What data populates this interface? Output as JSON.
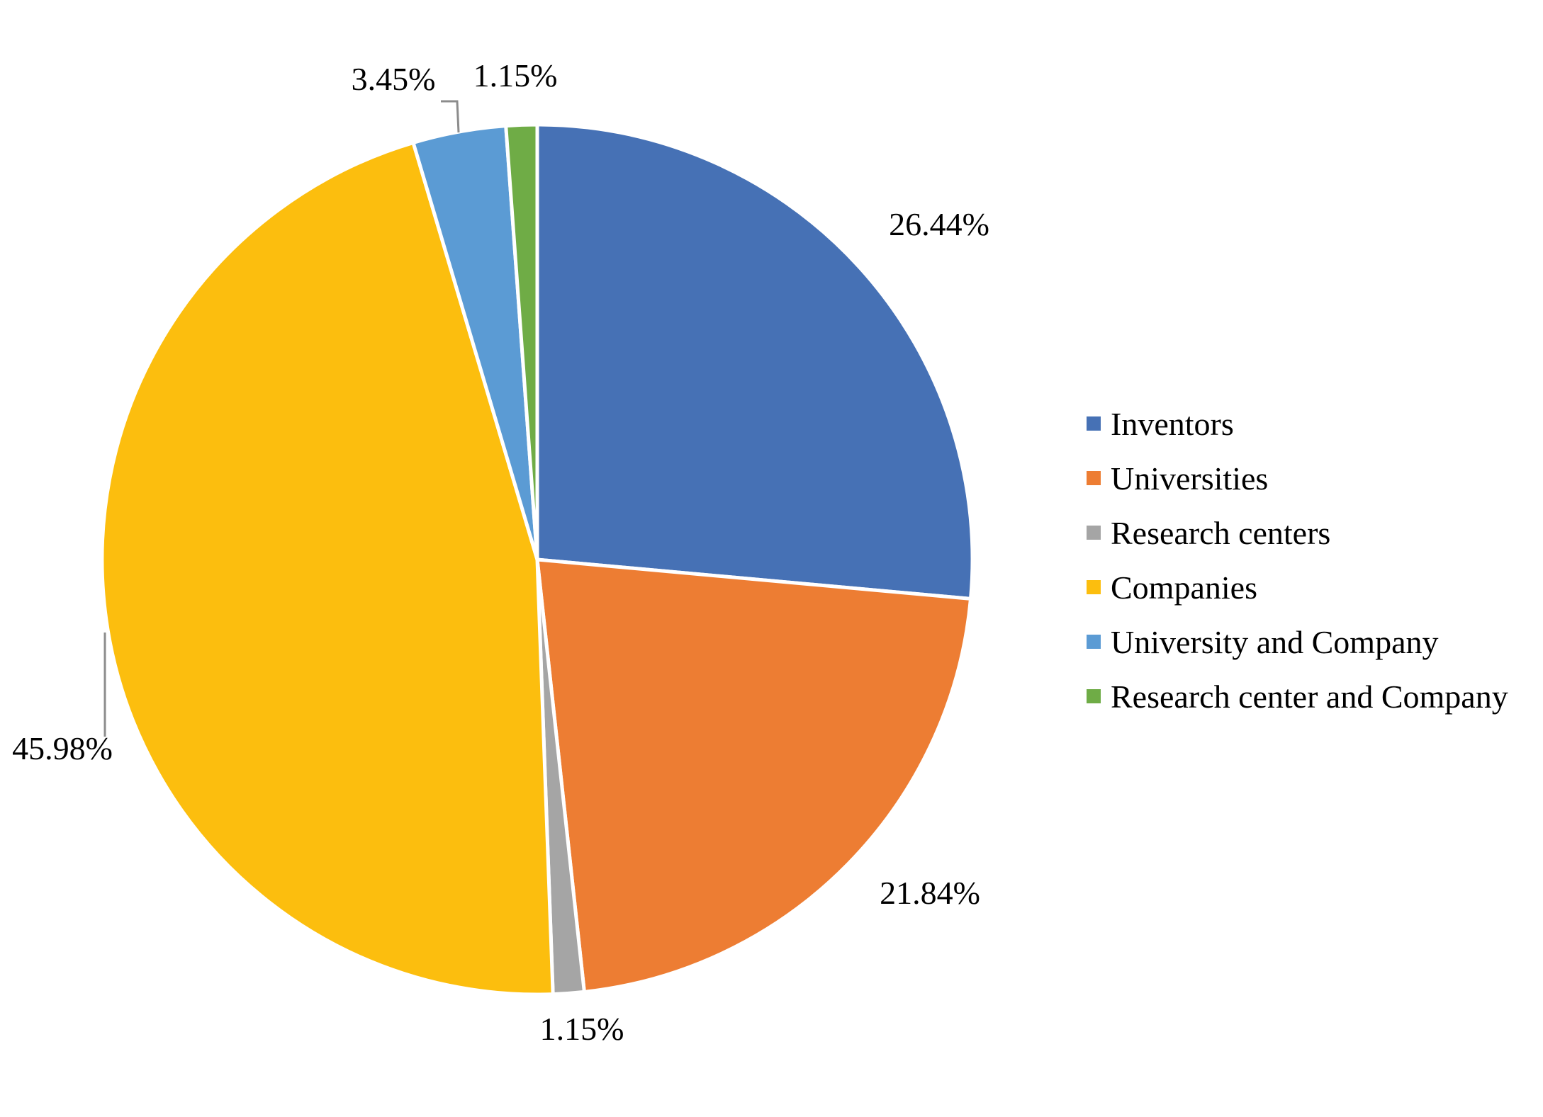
{
  "chart_data": {
    "type": "pie",
    "categories": [
      "Inventors",
      "Universities",
      "Research centers",
      "Companies",
      "University and Company",
      "Research center and Company"
    ],
    "values": [
      26.44,
      21.84,
      1.15,
      45.98,
      3.45,
      1.15
    ],
    "labels": [
      "26.44%",
      "21.84%",
      "1.15%",
      "45.98%",
      "3.45%",
      "1.15%"
    ],
    "colors": [
      "#4671B5",
      "#ED7D33",
      "#A5A5A5",
      "#FCBE0E",
      "#5B9BD4",
      "#6FAC46"
    ],
    "start_angle": "12 o'clock",
    "direction": "clockwise",
    "title": "",
    "legend_placement": "right"
  }
}
